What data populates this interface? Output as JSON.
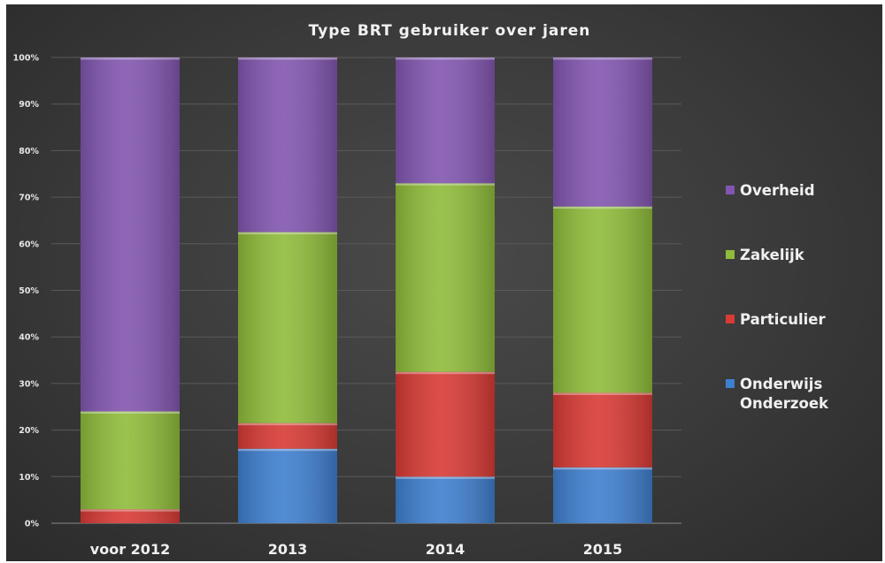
{
  "chart_data": {
    "type": "bar",
    "stacked": true,
    "title": "Type BRT gebruiker over jaren",
    "categories": [
      "voor 2012",
      "2013",
      "2014",
      "2015"
    ],
    "series": [
      {
        "name": "Onderwijs Onderzoek",
        "name_lines": [
          "Onderwijs",
          "Onderzoek"
        ],
        "color": "#3f7fcf",
        "values": [
          0,
          16,
          10,
          12
        ]
      },
      {
        "name": "Particulier",
        "name_lines": [
          "Particulier"
        ],
        "color": "#d83a35",
        "values": [
          3,
          5.5,
          22.5,
          16
        ]
      },
      {
        "name": "Zakelijk",
        "name_lines": [
          "Zakelijk"
        ],
        "color": "#8fbc3a",
        "values": [
          21,
          41,
          40.5,
          40
        ]
      },
      {
        "name": "Overheid",
        "name_lines": [
          "Overheid"
        ],
        "color": "#8256b0",
        "values": [
          76,
          37.5,
          27,
          32
        ]
      }
    ],
    "ylim": [
      0,
      100
    ],
    "yticks": [
      0,
      10,
      20,
      30,
      40,
      50,
      60,
      70,
      80,
      90,
      100
    ],
    "ytick_labels": [
      "0%",
      "10%",
      "20%",
      "30%",
      "40%",
      "50%",
      "60%",
      "70%",
      "80%",
      "90%",
      "100%"
    ],
    "legend_position": "right",
    "legend_order": [
      "Overheid",
      "Zakelijk",
      "Particulier",
      "Onderwijs Onderzoek"
    ],
    "grid": true
  }
}
